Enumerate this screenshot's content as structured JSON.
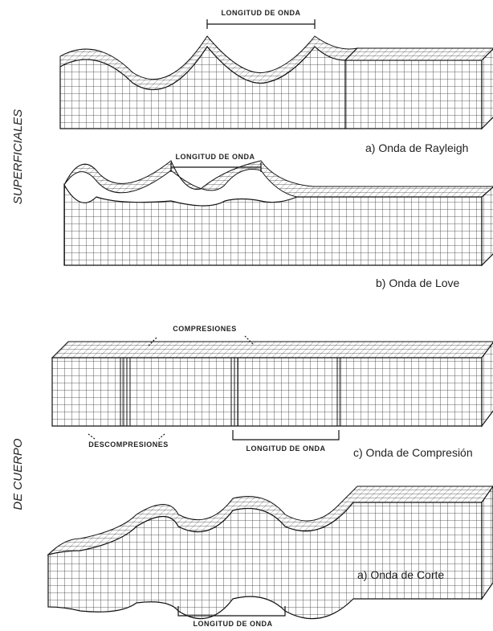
{
  "groups": [
    {
      "label": "SUPERFICIALES"
    },
    {
      "label": "DE CUERPO"
    }
  ],
  "panels": [
    {
      "caption": "a) Onda de Rayleigh",
      "wavelength_label": "LONGITUD DE ONDA"
    },
    {
      "caption": "b) Onda de Love",
      "wavelength_label": "LONGITUD DE ONDA"
    },
    {
      "caption": "c) Onda de Compresión",
      "wavelength_label": "LONGITUD DE ONDA",
      "compressions_label": "COMPRESIONES",
      "decompressions_label": "DESCOMPRESIONES"
    },
    {
      "caption": "a) Onda de Corte",
      "wavelength_label": "LONGITUD DE ONDA"
    }
  ]
}
